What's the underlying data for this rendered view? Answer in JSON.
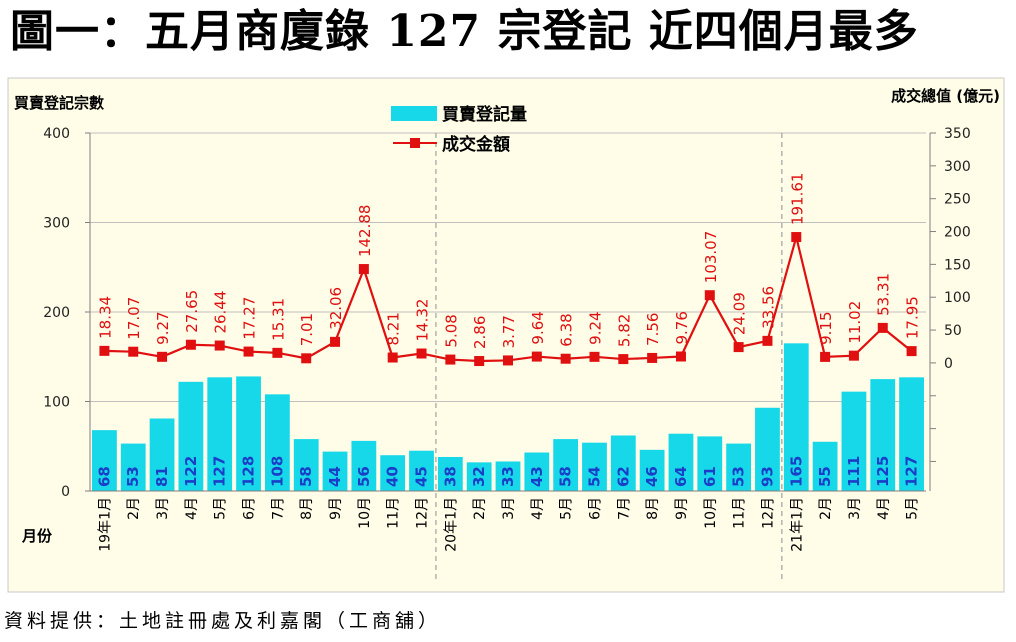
{
  "title": "圖一：五月商廈錄 127 宗登記  近四個月最多",
  "source": "資料提供：土地註冊處及利嘉閣（工商舖）",
  "colors": {
    "background": "#fffde8",
    "bar": "#17d8e8",
    "line": "#e01010",
    "bar_label": "#1a3ec8"
  },
  "chart_data": {
    "type": "bar",
    "ylabel": "買賣登記宗數",
    "y2label": "成交總值 (億元)",
    "xlabel": "月份",
    "ylim": [
      0,
      400
    ],
    "yticks": [
      0,
      100,
      200,
      300,
      400
    ],
    "y2lim": [
      -195,
      350
    ],
    "y2ticks": [
      0,
      50,
      100,
      150,
      200,
      250,
      300,
      350
    ],
    "categories": [
      "19年1月",
      "2月",
      "3月",
      "4月",
      "5月",
      "6月",
      "7月",
      "8月",
      "9月",
      "10月",
      "11月",
      "12月",
      "20年1月",
      "2月",
      "3月",
      "4月",
      "5月",
      "6月",
      "7月",
      "8月",
      "9月",
      "10月",
      "11月",
      "12月",
      "21年1月",
      "2月",
      "3月",
      "4月",
      "5月"
    ],
    "series": [
      {
        "name": "買賣登記量",
        "type": "bar",
        "axis": "left",
        "values": [
          68,
          53,
          81,
          122,
          127,
          128,
          108,
          58,
          44,
          56,
          40,
          45,
          38,
          32,
          33,
          43,
          58,
          54,
          62,
          46,
          64,
          61,
          53,
          93,
          165,
          55,
          111,
          125,
          127
        ]
      },
      {
        "name": "成交金額",
        "type": "line",
        "axis": "right",
        "values": [
          18.34,
          17.07,
          9.27,
          27.65,
          26.44,
          17.27,
          15.31,
          7.01,
          32.06,
          142.88,
          8.21,
          14.32,
          5.08,
          2.86,
          3.77,
          9.64,
          6.38,
          9.24,
          5.82,
          7.56,
          9.76,
          103.07,
          24.09,
          33.56,
          191.61,
          9.15,
          11.02,
          53.31,
          17.95
        ]
      }
    ],
    "grid": true
  }
}
